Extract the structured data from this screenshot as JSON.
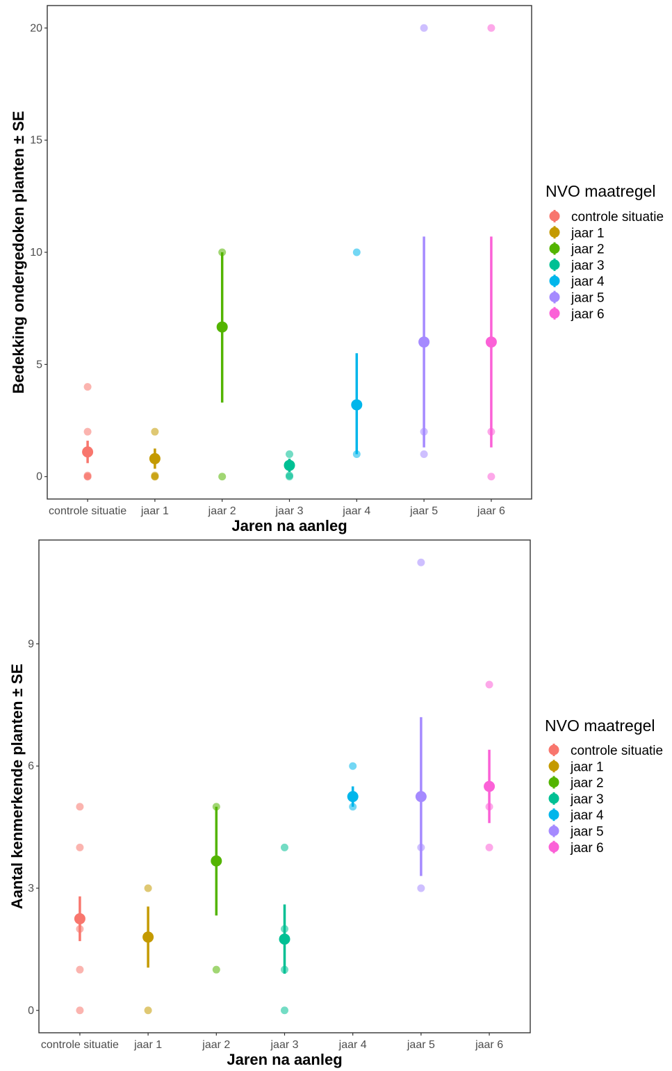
{
  "chart_data": [
    {
      "type": "scatter",
      "subtype": "point-range",
      "xlabel": "Jaren na aanleg",
      "ylabel": "Bedekking ondergedoken planten ± SE",
      "categories": [
        "controle situatie",
        "jaar 1",
        "jaar 2",
        "jaar 3",
        "jaar 4",
        "jaar 5",
        "jaar 6"
      ],
      "ylim": [
        -1,
        21
      ],
      "yticks": [
        0,
        5,
        10,
        15,
        20
      ],
      "legend": {
        "title": "NVO maatregel",
        "position": "right"
      },
      "grid": false,
      "series": [
        {
          "name": "controle situatie",
          "color": "#F8766D",
          "mean": 1.1,
          "se_low": 0.6,
          "se_high": 1.6,
          "points": [
            0,
            0,
            0.05,
            2,
            4
          ]
        },
        {
          "name": "jaar 1",
          "color": "#C49A00",
          "mean": 0.8,
          "se_low": 0.35,
          "se_high": 1.25,
          "points": [
            0,
            0,
            0.05,
            2
          ]
        },
        {
          "name": "jaar 2",
          "color": "#53B400",
          "mean": 6.67,
          "se_low": 3.3,
          "se_high": 10,
          "points": [
            0,
            10
          ]
        },
        {
          "name": "jaar 3",
          "color": "#00C094",
          "mean": 0.5,
          "se_low": 0.2,
          "se_high": 0.8,
          "points": [
            0,
            0.05,
            1
          ]
        },
        {
          "name": "jaar 4",
          "color": "#00B6EB",
          "mean": 3.2,
          "se_low": 1,
          "se_high": 5.5,
          "points": [
            1,
            10
          ]
        },
        {
          "name": "jaar 5",
          "color": "#A58AFF",
          "mean": 6,
          "se_low": 1.3,
          "se_high": 10.7,
          "points": [
            1,
            2,
            20
          ]
        },
        {
          "name": "jaar 6",
          "color": "#FB61D7",
          "mean": 6,
          "se_low": 1.3,
          "se_high": 10.7,
          "points": [
            0,
            2,
            20
          ]
        }
      ]
    },
    {
      "type": "scatter",
      "subtype": "point-range",
      "xlabel": "Jaren na aanleg",
      "ylabel": "Aantal kenmerkende planten ± SE",
      "categories": [
        "controle situatie",
        "jaar 1",
        "jaar 2",
        "jaar 3",
        "jaar 4",
        "jaar 5",
        "jaar 6"
      ],
      "ylim": [
        -0.55,
        11.55
      ],
      "yticks": [
        0,
        3,
        6,
        9
      ],
      "legend": {
        "title": "NVO maatregel",
        "position": "right"
      },
      "grid": false,
      "series": [
        {
          "name": "controle situatie",
          "color": "#F8766D",
          "mean": 2.25,
          "se_low": 1.7,
          "se_high": 2.8,
          "points": [
            0,
            1,
            2,
            4,
            5
          ]
        },
        {
          "name": "jaar 1",
          "color": "#C49A00",
          "mean": 1.8,
          "se_low": 1.05,
          "se_high": 2.55,
          "points": [
            0,
            3
          ]
        },
        {
          "name": "jaar 2",
          "color": "#53B400",
          "mean": 3.67,
          "se_low": 2.33,
          "se_high": 5,
          "points": [
            1,
            5
          ]
        },
        {
          "name": "jaar 3",
          "color": "#00C094",
          "mean": 1.75,
          "se_low": 0.9,
          "se_high": 2.6,
          "points": [
            0,
            1,
            2,
            4
          ]
        },
        {
          "name": "jaar 4",
          "color": "#00B6EB",
          "mean": 5.25,
          "se_low": 5,
          "se_high": 5.5,
          "points": [
            5,
            6
          ]
        },
        {
          "name": "jaar 5",
          "color": "#A58AFF",
          "mean": 5.25,
          "se_low": 3.3,
          "se_high": 7.2,
          "points": [
            3,
            4,
            11
          ]
        },
        {
          "name": "jaar 6",
          "color": "#FB61D7",
          "mean": 5.5,
          "se_low": 4.6,
          "se_high": 6.4,
          "points": [
            4,
            5,
            8
          ]
        }
      ]
    }
  ]
}
